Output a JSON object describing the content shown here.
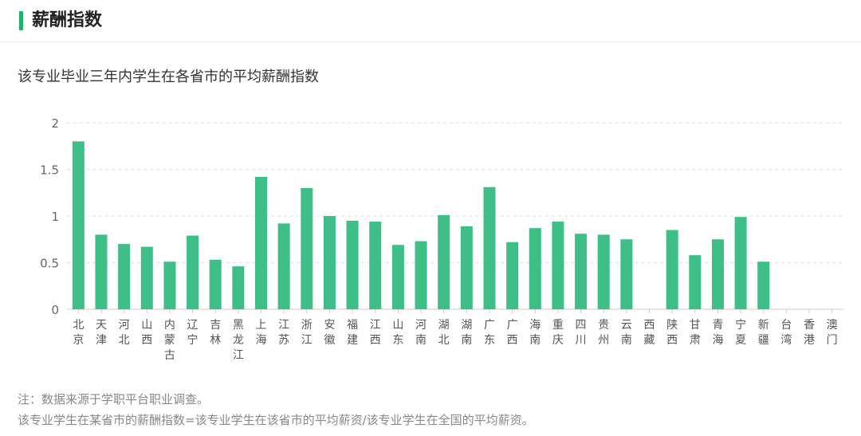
{
  "header": {
    "title": "薪酬指数"
  },
  "chart_data": {
    "type": "bar",
    "title": "该专业毕业三年内学生在各省市的平均薪酬指数",
    "categories": [
      "北京",
      "天津",
      "河北",
      "山西",
      "内蒙古",
      "辽宁",
      "吉林",
      "黑龙江",
      "上海",
      "江苏",
      "浙江",
      "安徽",
      "福建",
      "江西",
      "山东",
      "河南",
      "湖北",
      "湖南",
      "广东",
      "广西",
      "海南",
      "重庆",
      "四川",
      "贵州",
      "云南",
      "西藏",
      "陕西",
      "甘肃",
      "青海",
      "宁夏",
      "新疆",
      "台湾",
      "香港",
      "澳门"
    ],
    "values": [
      1.8,
      0.8,
      0.7,
      0.67,
      0.51,
      0.79,
      0.53,
      0.46,
      1.42,
      0.92,
      1.3,
      1.0,
      0.95,
      0.94,
      0.69,
      0.73,
      1.01,
      0.89,
      1.31,
      0.72,
      0.87,
      0.94,
      0.81,
      0.8,
      0.75,
      null,
      0.85,
      0.58,
      0.75,
      0.99,
      0.51,
      null,
      null,
      null
    ],
    "yticks": [
      "0",
      "0.5",
      "1",
      "1.5",
      "2"
    ],
    "ylim": [
      0,
      2
    ],
    "grid": true,
    "bar_color": "#3dbf87",
    "grid_color": "#e3e3e3",
    "axis_color": "#cccccc",
    "tick_color": "#666666"
  },
  "notes": {
    "line1": "注：数据来源于学职平台职业调查。",
    "line2": "该专业学生在某省市的薪酬指数=该专业学生在该省市的平均薪资/该专业学生在全国的平均薪资。"
  }
}
